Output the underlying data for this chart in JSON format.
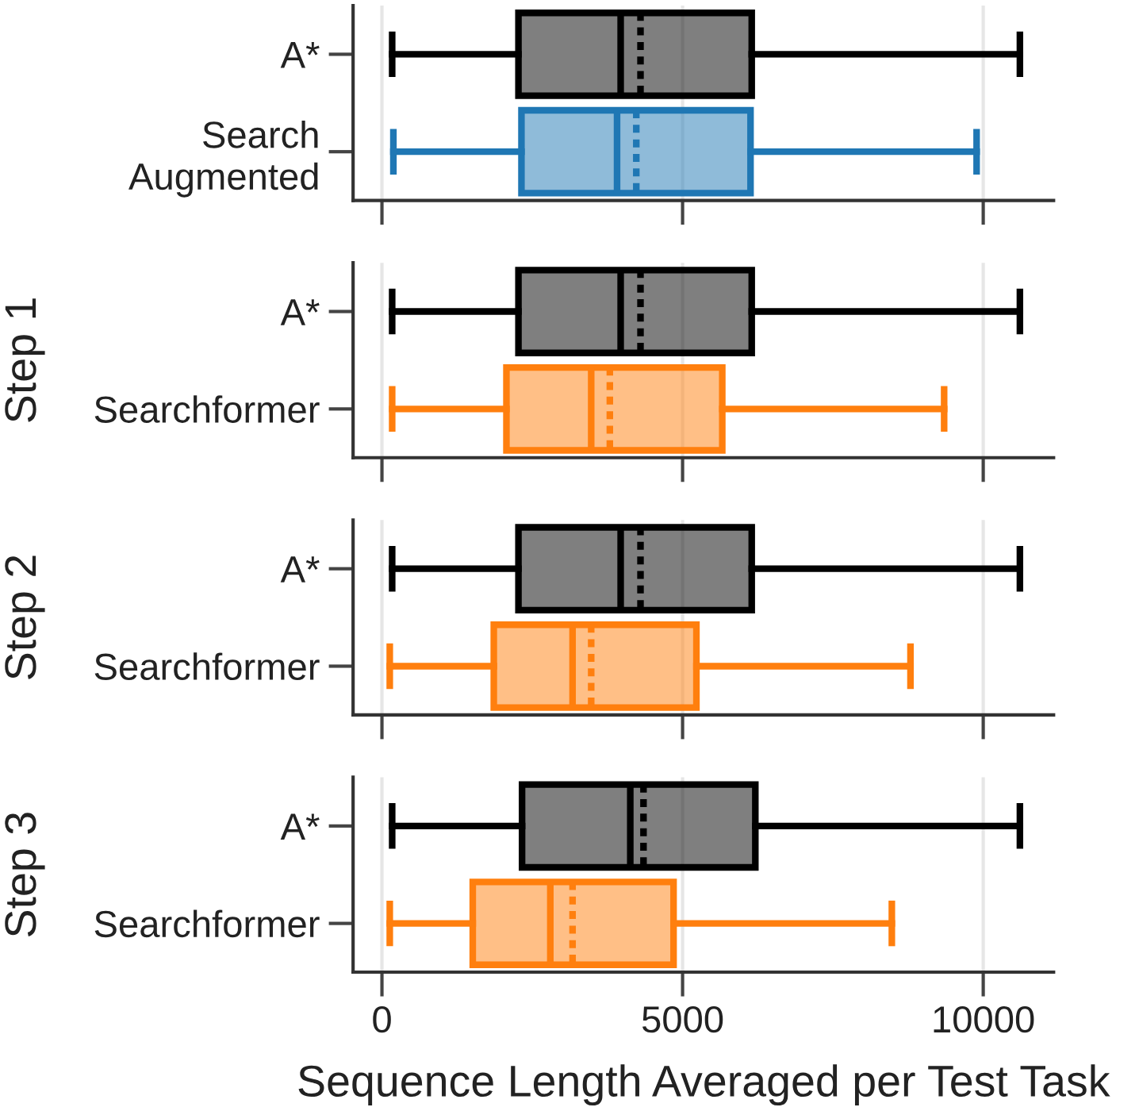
{
  "chart_data": [
    {
      "type": "box",
      "categories": [
        "A*",
        "Search\nAugmented"
      ],
      "colors": [
        "#000000",
        "#1f77b4"
      ],
      "boxes": [
        {
          "low": 170,
          "q1": 2270,
          "median": 3970,
          "mean": 4300,
          "q3": 6150,
          "high": 10610
        },
        {
          "low": 190,
          "q1": 2320,
          "median": 3910,
          "mean": 4230,
          "q3": 6130,
          "high": 9890
        }
      ],
      "orientation": "horizontal",
      "xlim": [
        -480,
        11170
      ],
      "xticks": [
        0,
        5000,
        10000
      ],
      "grid": "x",
      "tick_labels": "y"
    },
    {
      "type": "box",
      "ylabel": "Step 1",
      "categories": [
        "A*",
        "Searchformer"
      ],
      "colors": [
        "#000000",
        "#ff7f0e"
      ],
      "boxes": [
        {
          "low": 170,
          "q1": 2270,
          "median": 3970,
          "mean": 4300,
          "q3": 6150,
          "high": 10610
        },
        {
          "low": 170,
          "q1": 2070,
          "median": 3480,
          "mean": 3790,
          "q3": 5660,
          "high": 9350
        }
      ],
      "orientation": "horizontal",
      "xlim": [
        -480,
        11170
      ],
      "xticks": [
        0,
        5000,
        10000
      ],
      "grid": "x",
      "tick_labels": "y"
    },
    {
      "type": "box",
      "ylabel": "Step 2",
      "categories": [
        "A*",
        "Searchformer"
      ],
      "colors": [
        "#000000",
        "#ff7f0e"
      ],
      "boxes": [
        {
          "low": 170,
          "q1": 2270,
          "median": 3970,
          "mean": 4300,
          "q3": 6150,
          "high": 10610
        },
        {
          "low": 130,
          "q1": 1860,
          "median": 3170,
          "mean": 3480,
          "q3": 5230,
          "high": 8790
        }
      ],
      "orientation": "horizontal",
      "xlim": [
        -480,
        11170
      ],
      "xticks": [
        0,
        5000,
        10000
      ],
      "grid": "x",
      "tick_labels": "y"
    },
    {
      "type": "box",
      "ylabel": "Step 3",
      "xlabel": "Sequence Length Averaged per Test Task",
      "categories": [
        "A*",
        "Searchformer"
      ],
      "colors": [
        "#000000",
        "#ff7f0e"
      ],
      "boxes": [
        {
          "low": 170,
          "q1": 2330,
          "median": 4130,
          "mean": 4350,
          "q3": 6210,
          "high": 10610
        },
        {
          "low": 130,
          "q1": 1510,
          "median": 2800,
          "mean": 3170,
          "q3": 4850,
          "high": 8480
        }
      ],
      "orientation": "horizontal",
      "xlim": [
        -480,
        11170
      ],
      "xticks": [
        0,
        5000,
        10000
      ],
      "grid": "x"
    }
  ]
}
